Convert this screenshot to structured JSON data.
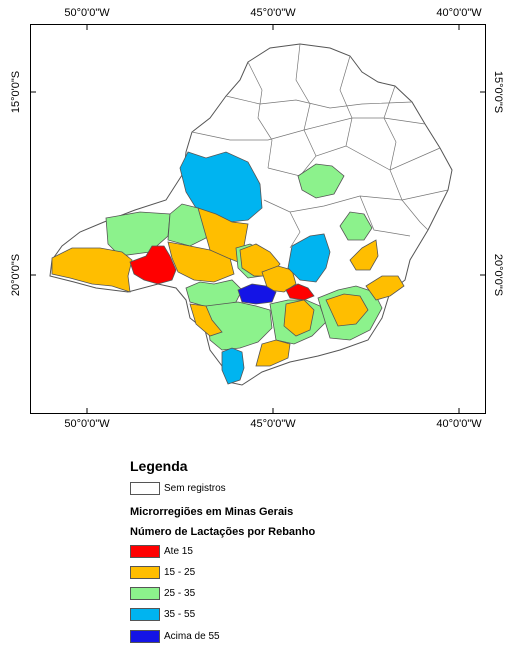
{
  "coords": {
    "lon_top": [
      "50°0'0\"W",
      "45°0'0\"W",
      "40°0'0\"W"
    ],
    "lon_bottom": [
      "50°0'0\"W",
      "45°0'0\"W",
      "40°0'0\"W"
    ],
    "lat_left": [
      "15°0'0\"S",
      "20°0'0\"S"
    ],
    "lat_right": [
      "15°0'0\"S",
      "20°0'0\"S"
    ]
  },
  "legend": {
    "title": "Legenda",
    "no_record": "Sem registros",
    "subtitle1": "Microrregiões em Minas Gerais",
    "subtitle2": "Número de Lactações por Rebanho",
    "classes": [
      {
        "label": "Ate 15",
        "color": "#ff0000"
      },
      {
        "label": "15 - 25",
        "color": "#ffbe00"
      },
      {
        "label": "25 - 35",
        "color": "#8cf28c"
      },
      {
        "label": "35 - 55",
        "color": "#00b4f0"
      },
      {
        "label": "Acima de 55",
        "color": "#1414e6"
      }
    ]
  },
  "colors": {
    "no_record": "#ffffff",
    "border": "#555555"
  }
}
